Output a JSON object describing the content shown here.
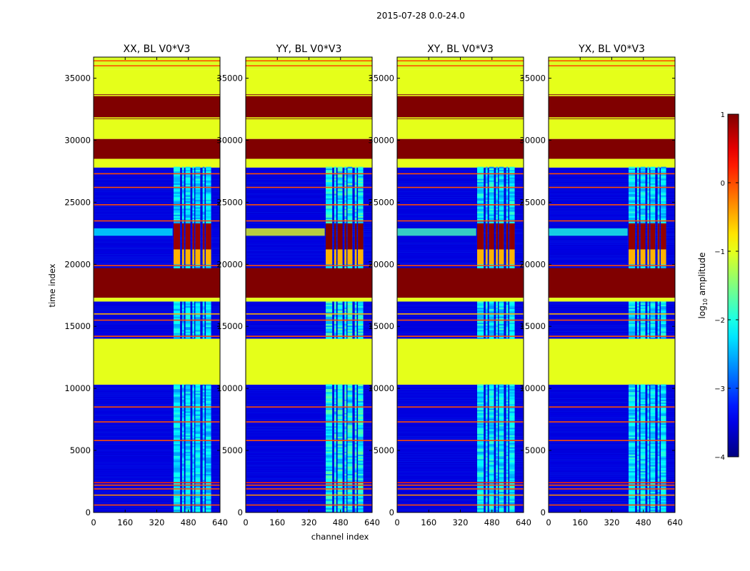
{
  "chart_data": {
    "type": "heatmap",
    "suptitle": "2015-07-28 0.0-24.0",
    "xlabel": "channel index",
    "ylabel": "time index",
    "xlim": [
      0,
      640
    ],
    "ylim": [
      0,
      36700
    ],
    "xticks": [
      0,
      160,
      320,
      480,
      640
    ],
    "yticks": [
      0,
      5000,
      10000,
      15000,
      20000,
      25000,
      30000,
      35000
    ],
    "panels": [
      {
        "title": "XX, BL V0*V3",
        "rfi_scale": 0.7
      },
      {
        "title": "YY, BL V0*V3",
        "rfi_scale": 1.0
      },
      {
        "title": "XY, BL V0*V3",
        "rfi_scale": 0.8
      },
      {
        "title": "YX, BL V0*V3",
        "rfi_scale": 0.75
      }
    ],
    "colorbar": {
      "label": "log10 amplitude",
      "label_main": "log",
      "label_sub": "10",
      "label_rest": " amplitude",
      "min": -4,
      "max": 1,
      "ticks": [
        1,
        0,
        -1,
        -2,
        -3,
        -4
      ],
      "tick_labels": [
        "1",
        "0",
        "−1",
        "−2",
        "−3",
        "−4"
      ],
      "colormap": "jet"
    },
    "flag_bands": [
      {
        "t0": 35700,
        "t1": 36700,
        "value": -1.05
      },
      {
        "t0": 33700,
        "t1": 35700,
        "value": -1.0
      },
      {
        "t0": 31700,
        "t1": 33700,
        "value": 1.0
      },
      {
        "t0": 30100,
        "t1": 31700,
        "value": -1.0
      },
      {
        "t0": 28500,
        "t1": 30100,
        "value": 1.0
      },
      {
        "t0": 27800,
        "t1": 28500,
        "value": -1.0
      },
      {
        "t0": 17300,
        "t1": 19700,
        "value": 1.0
      },
      {
        "t0": 17000,
        "t1": 17300,
        "value": -1.0
      },
      {
        "t0": 10300,
        "t1": 14000,
        "value": -1.0
      }
    ],
    "data_segments": [
      {
        "t0": 0,
        "t1": 10300
      },
      {
        "t0": 14000,
        "t1": 17000
      },
      {
        "t0": 19700,
        "t1": 27800
      }
    ],
    "hot_segment": {
      "t0": 21200,
      "t1": 23300,
      "value": 1.0
    },
    "rfi_channels": [
      [
        405,
        438
      ],
      [
        448,
        458
      ],
      [
        465,
        490
      ],
      [
        500,
        510
      ],
      [
        515,
        540
      ],
      [
        552,
        562
      ],
      [
        568,
        595
      ]
    ],
    "horizontal_lines": [
      {
        "t": 600,
        "value": 0.0
      },
      {
        "t": 1400,
        "value": -0.3
      },
      {
        "t": 1900,
        "value": 0.0
      },
      {
        "t": 2200,
        "value": 0.0
      },
      {
        "t": 2400,
        "value": 0.2
      },
      {
        "t": 5800,
        "value": 0.0
      },
      {
        "t": 7300,
        "value": 0.0
      },
      {
        "t": 8500,
        "value": 0.0
      },
      {
        "t": 14200,
        "value": 0.0
      },
      {
        "t": 15500,
        "value": 0.0
      },
      {
        "t": 16000,
        "value": -0.5
      },
      {
        "t": 19900,
        "value": 0.0
      },
      {
        "t": 23500,
        "value": 0.0
      },
      {
        "t": 24800,
        "value": 0.0
      },
      {
        "t": 26200,
        "value": 0.0
      },
      {
        "t": 27300,
        "value": 0.0
      },
      {
        "t": 31800,
        "value": -1.0
      },
      {
        "t": 33600,
        "value": -1.0
      },
      {
        "t": 36000,
        "value": 0.0
      },
      {
        "t": 36400,
        "value": 0.0
      }
    ],
    "colors": {
      "background": "#ffffff",
      "axis": "#000000"
    }
  }
}
